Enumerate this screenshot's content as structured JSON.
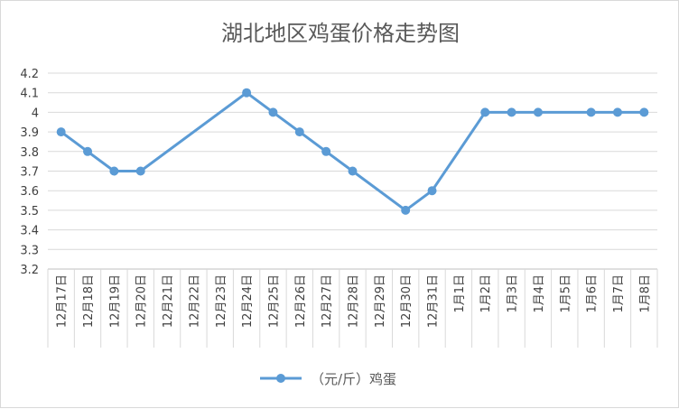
{
  "chart_data": {
    "type": "line",
    "title": "湖北地区鸡蛋价格走势图",
    "categories": [
      "12月17日",
      "12月18日",
      "12月19日",
      "12月20日",
      "12月21日",
      "12月22日",
      "12月23日",
      "12月24日",
      "12月25日",
      "12月26日",
      "12月27日",
      "12月28日",
      "12月29日",
      "12月30日",
      "12月31日",
      "1月1日",
      "1月2日",
      "1月3日",
      "1月4日",
      "1月5日",
      "1月6日",
      "1月7日",
      "1月8日"
    ],
    "series": [
      {
        "name": "（元/斤）鸡蛋",
        "color": "#5b9bd5",
        "values": [
          3.9,
          3.8,
          3.7,
          3.7,
          null,
          null,
          null,
          4.1,
          4.0,
          3.9,
          3.8,
          3.7,
          null,
          3.5,
          3.6,
          null,
          4.0,
          4.0,
          4.0,
          null,
          4.0,
          4.0,
          4.0
        ]
      }
    ],
    "ylim": [
      3.2,
      4.2
    ],
    "yticks": [
      "3.2",
      "3.3",
      "3.4",
      "3.5",
      "3.6",
      "3.7",
      "3.8",
      "3.9",
      "4",
      "4.1",
      "4.2"
    ],
    "grid": true,
    "legend_position": "bottom"
  }
}
